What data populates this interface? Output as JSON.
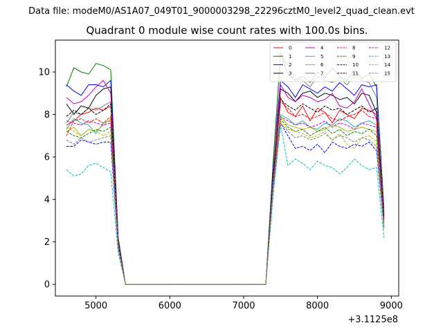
{
  "suptitle": "Data file: modeM0/AS1A07_049T01_9000003298_22296cztM0_level2_quad_clean.evt",
  "chart_data": {
    "type": "line",
    "title": "Quadrant 0 module wise count rates with 100.0s bins.",
    "xlabel": "",
    "ylabel": "",
    "x_offset_label": "+3.1125e8",
    "xlim": [
      4450,
      9100
    ],
    "ylim": [
      -0.55,
      11.5
    ],
    "xticks": [
      5000,
      6000,
      7000,
      8000,
      9000
    ],
    "xtick_labels": [
      "5000",
      "6000",
      "7000",
      "8000",
      "9000"
    ],
    "yticks": [
      0,
      2,
      4,
      6,
      8,
      10
    ],
    "ytick_labels": [
      "0",
      "2",
      "4",
      "6",
      "8",
      "10"
    ],
    "legend_position": "top-right",
    "grid": false,
    "x": [
      4600,
      4700,
      4800,
      4900,
      5000,
      5100,
      5200,
      5300,
      5400,
      5500,
      5600,
      5700,
      5800,
      5900,
      6000,
      6100,
      6200,
      6300,
      6400,
      6500,
      6600,
      6700,
      6800,
      6900,
      7000,
      7100,
      7200,
      7300,
      7400,
      7500,
      7600,
      7700,
      7800,
      7900,
      8000,
      8100,
      8200,
      8300,
      8400,
      8500,
      8600,
      8700,
      8800,
      8900
    ],
    "series": [
      {
        "name": "0",
        "color": "#ff0000",
        "dash": false,
        "values": [
          7.5,
          7.7,
          8.0,
          8.1,
          8.3,
          8.2,
          8.4,
          2.0,
          0,
          0,
          0,
          0,
          0,
          0,
          0,
          0,
          0,
          0,
          0,
          0,
          0,
          0,
          0,
          0,
          0,
          0,
          0,
          0,
          5.0,
          8.8,
          8.1,
          7.9,
          8.4,
          7.7,
          8.3,
          8.1,
          7.6,
          8.2,
          8.0,
          7.8,
          8.3,
          8.2,
          8.0,
          3.2
        ]
      },
      {
        "name": "1",
        "color": "#008000",
        "dash": false,
        "values": [
          9.3,
          10.2,
          10.0,
          9.9,
          10.4,
          10.3,
          10.1,
          2.2,
          0,
          0,
          0,
          0,
          0,
          0,
          0,
          0,
          0,
          0,
          0,
          0,
          0,
          0,
          0,
          0,
          0,
          0,
          0,
          0,
          5.8,
          10.9,
          9.9,
          9.6,
          9.8,
          9.5,
          10.0,
          9.7,
          10.2,
          9.8,
          9.6,
          10.1,
          9.7,
          9.9,
          9.3,
          3.6
        ]
      },
      {
        "name": "2",
        "color": "#0000ff",
        "dash": false,
        "values": [
          9.4,
          9.1,
          8.9,
          9.4,
          9.4,
          9.3,
          9.6,
          2.2,
          0,
          0,
          0,
          0,
          0,
          0,
          0,
          0,
          0,
          0,
          0,
          0,
          0,
          0,
          0,
          0,
          0,
          0,
          0,
          0,
          5.6,
          9.6,
          9.3,
          8.8,
          9.4,
          9.2,
          9.0,
          9.3,
          9.1,
          9.5,
          9.2,
          8.9,
          9.4,
          9.3,
          9.4,
          3.5
        ]
      },
      {
        "name": "3",
        "color": "#000000",
        "dash": false,
        "values": [
          8.5,
          8.0,
          8.4,
          8.3,
          8.9,
          9.2,
          9.3,
          2.1,
          0,
          0,
          0,
          0,
          0,
          0,
          0,
          0,
          0,
          0,
          0,
          0,
          0,
          0,
          0,
          0,
          0,
          0,
          0,
          0,
          5.4,
          9.2,
          9.0,
          8.6,
          9.0,
          9.1,
          8.8,
          9.0,
          8.9,
          8.7,
          8.8,
          8.5,
          9.0,
          8.9,
          8.1,
          3.3
        ]
      },
      {
        "name": "4",
        "color": "#bf00bf",
        "dash": false,
        "values": [
          8.8,
          8.5,
          8.6,
          8.9,
          9.3,
          9.6,
          9.0,
          2.1,
          0,
          0,
          0,
          0,
          0,
          0,
          0,
          0,
          0,
          0,
          0,
          0,
          0,
          0,
          0,
          0,
          0,
          0,
          0,
          0,
          5.3,
          9.4,
          8.8,
          8.6,
          8.9,
          8.8,
          8.6,
          8.7,
          9.0,
          8.4,
          8.3,
          8.6,
          9.2,
          8.5,
          7.8,
          3.1
        ]
      },
      {
        "name": "5",
        "color": "#20b2aa",
        "dash": false,
        "values": [
          7.3,
          7.8,
          7.6,
          7.5,
          7.1,
          7.6,
          7.7,
          1.8,
          0,
          0,
          0,
          0,
          0,
          0,
          0,
          0,
          0,
          0,
          0,
          0,
          0,
          0,
          0,
          0,
          0,
          0,
          0,
          0,
          4.8,
          8.0,
          7.8,
          7.5,
          7.7,
          7.4,
          7.3,
          7.6,
          7.5,
          7.8,
          7.7,
          7.4,
          7.6,
          7.7,
          7.5,
          3.0
        ]
      },
      {
        "name": "6",
        "color": "#b5b500",
        "dash": false,
        "values": [
          7.2,
          7.4,
          7.0,
          7.3,
          7.2,
          7.5,
          7.8,
          1.8,
          0,
          0,
          0,
          0,
          0,
          0,
          0,
          0,
          0,
          0,
          0,
          0,
          0,
          0,
          0,
          0,
          0,
          0,
          0,
          0,
          4.7,
          7.9,
          7.5,
          7.4,
          7.3,
          7.4,
          7.2,
          7.3,
          7.5,
          7.4,
          7.2,
          7.3,
          7.4,
          7.3,
          7.2,
          2.9
        ]
      },
      {
        "name": "7",
        "color": "#808080",
        "dash": false,
        "values": [
          7.6,
          8.1,
          8.0,
          8.3,
          8.2,
          8.4,
          8.6,
          2.0,
          0,
          0,
          0,
          0,
          0,
          0,
          0,
          0,
          0,
          0,
          0,
          0,
          0,
          0,
          0,
          0,
          0,
          0,
          0,
          0,
          5.2,
          10.8,
          10.3,
          9.7,
          9.6,
          9.3,
          9.8,
          9.6,
          9.5,
          9.7,
          9.4,
          9.8,
          9.6,
          9.5,
          8.8,
          3.4
        ]
      },
      {
        "name": "8",
        "color": "#ff0000",
        "dash": true,
        "values": [
          7.0,
          7.7,
          7.8,
          7.6,
          7.8,
          7.6,
          7.9,
          1.9,
          0,
          0,
          0,
          0,
          0,
          0,
          0,
          0,
          0,
          0,
          0,
          0,
          0,
          0,
          0,
          0,
          0,
          0,
          0,
          0,
          4.9,
          8.6,
          8.3,
          7.9,
          8.0,
          7.8,
          7.9,
          8.1,
          7.8,
          7.7,
          7.9,
          8.0,
          8.2,
          7.9,
          7.8,
          3.1
        ]
      },
      {
        "name": "9",
        "color": "#008000",
        "dash": true,
        "values": [
          7.2,
          7.0,
          6.9,
          7.1,
          7.3,
          7.2,
          7.4,
          1.8,
          0,
          0,
          0,
          0,
          0,
          0,
          0,
          0,
          0,
          0,
          0,
          0,
          0,
          0,
          0,
          0,
          0,
          0,
          0,
          0,
          4.7,
          7.8,
          7.4,
          7.2,
          7.3,
          7.0,
          7.2,
          7.4,
          7.1,
          7.3,
          7.0,
          7.2,
          7.1,
          7.3,
          7.0,
          2.8
        ]
      },
      {
        "name": "10",
        "color": "#0000ff",
        "dash": true,
        "values": [
          6.5,
          6.5,
          6.8,
          6.7,
          6.6,
          6.7,
          6.7,
          1.7,
          0,
          0,
          0,
          0,
          0,
          0,
          0,
          0,
          0,
          0,
          0,
          0,
          0,
          0,
          0,
          0,
          0,
          0,
          0,
          0,
          4.5,
          7.6,
          7.0,
          6.4,
          6.5,
          6.3,
          6.6,
          6.2,
          6.7,
          6.5,
          6.4,
          6.6,
          6.5,
          6.7,
          6.3,
          2.7
        ]
      },
      {
        "name": "11",
        "color": "#000000",
        "dash": true,
        "values": [
          7.9,
          8.2,
          8.0,
          8.3,
          8.0,
          8.2,
          8.5,
          2.0,
          0,
          0,
          0,
          0,
          0,
          0,
          0,
          0,
          0,
          0,
          0,
          0,
          0,
          0,
          0,
          0,
          0,
          0,
          0,
          0,
          5.1,
          8.7,
          8.4,
          8.2,
          8.5,
          8.3,
          8.1,
          8.4,
          8.2,
          8.3,
          8.0,
          8.2,
          8.4,
          8.1,
          8.3,
          3.2
        ]
      },
      {
        "name": "12",
        "color": "#bf00bf",
        "dash": true,
        "values": [
          7.7,
          7.6,
          7.5,
          7.7,
          7.6,
          7.5,
          7.6,
          1.9,
          0,
          0,
          0,
          0,
          0,
          0,
          0,
          0,
          0,
          0,
          0,
          0,
          0,
          0,
          0,
          0,
          0,
          0,
          0,
          0,
          4.8,
          7.9,
          7.7,
          7.5,
          7.6,
          7.4,
          7.5,
          7.7,
          7.4,
          7.6,
          7.5,
          7.3,
          7.6,
          7.5,
          7.4,
          2.9
        ]
      },
      {
        "name": "13",
        "color": "#00bfbf",
        "dash": true,
        "values": [
          5.4,
          5.1,
          5.2,
          5.6,
          5.7,
          5.5,
          5.3,
          1.5,
          0,
          0,
          0,
          0,
          0,
          0,
          0,
          0,
          0,
          0,
          0,
          0,
          0,
          0,
          0,
          0,
          0,
          0,
          0,
          0,
          4.2,
          7.5,
          5.6,
          5.9,
          5.7,
          5.4,
          5.8,
          5.6,
          5.5,
          5.2,
          5.5,
          5.9,
          5.6,
          5.4,
          5.5,
          2.2
        ]
      },
      {
        "name": "14",
        "color": "#b5b500",
        "dash": true,
        "values": [
          7.4,
          7.2,
          7.0,
          7.3,
          7.2,
          7.0,
          7.2,
          1.8,
          0,
          0,
          0,
          0,
          0,
          0,
          0,
          0,
          0,
          0,
          0,
          0,
          0,
          0,
          0,
          0,
          0,
          0,
          0,
          0,
          4.6,
          7.7,
          7.3,
          7.2,
          7.1,
          6.9,
          7.0,
          7.2,
          6.8,
          7.1,
          6.6,
          6.4,
          6.9,
          7.0,
          6.7,
          2.7
        ]
      },
      {
        "name": "15",
        "color": "#808080",
        "dash": true,
        "values": [
          6.8,
          6.6,
          6.9,
          6.7,
          6.8,
          6.9,
          7.0,
          1.7,
          0,
          0,
          0,
          0,
          0,
          0,
          0,
          0,
          0,
          0,
          0,
          0,
          0,
          0,
          0,
          0,
          0,
          0,
          0,
          0,
          4.6,
          7.6,
          7.2,
          6.9,
          7.0,
          6.8,
          6.9,
          7.1,
          6.8,
          7.0,
          6.9,
          6.7,
          6.9,
          6.8,
          6.5,
          2.6
        ]
      }
    ]
  }
}
